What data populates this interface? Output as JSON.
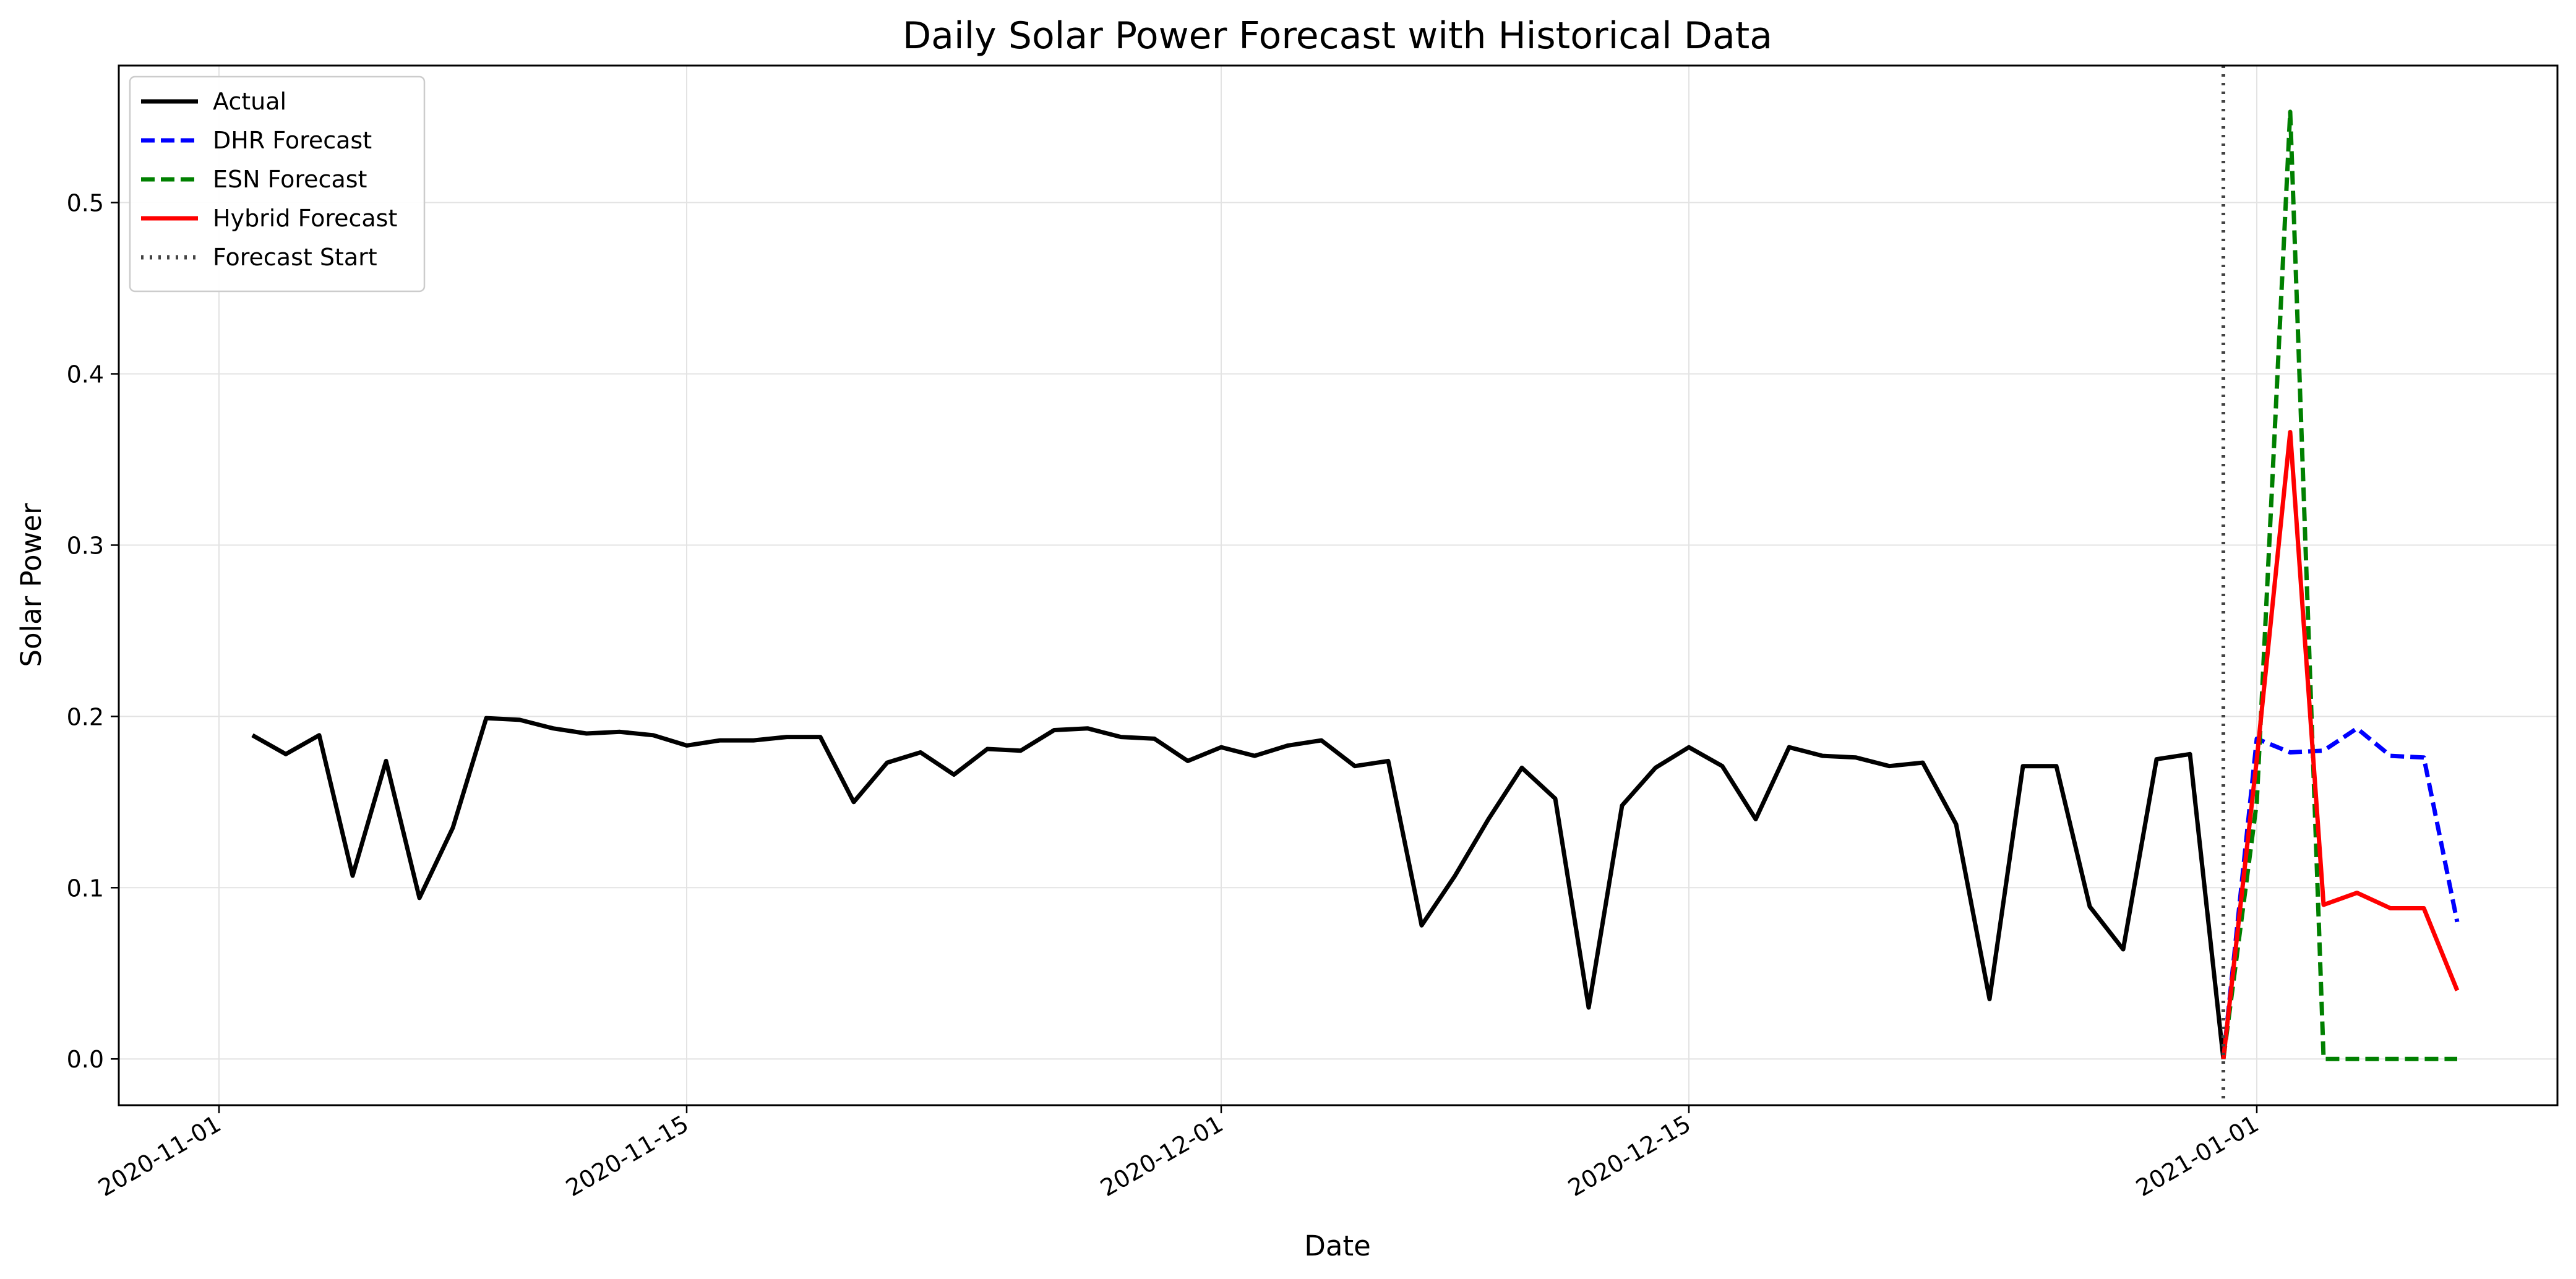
{
  "chart_data": {
    "type": "line",
    "title": "Daily Solar Power Forecast with Historical Data",
    "xlabel": "Date",
    "ylabel": "Solar Power",
    "x_ticks": [
      "2020-11-01",
      "2020-11-15",
      "2020-12-01",
      "2020-12-15",
      "2021-01-01"
    ],
    "y_ticks": [
      "0.0",
      "0.1",
      "0.2",
      "0.3",
      "0.4",
      "0.5"
    ],
    "xlim": [
      "2020-10-29",
      "2021-01-10"
    ],
    "ylim": [
      -0.027,
      0.58
    ],
    "grid": true,
    "legend_position": "top-left",
    "forecast_start": {
      "label": "Forecast Start",
      "date": "2020-12-31",
      "color": "#444444"
    },
    "series": [
      {
        "name": "Actual",
        "color": "#000000",
        "style": "solid",
        "start_date": "2020-11-02",
        "values": [
          0.189,
          0.178,
          0.189,
          0.107,
          0.174,
          0.094,
          0.135,
          0.199,
          0.198,
          0.193,
          0.19,
          0.191,
          0.189,
          0.183,
          0.186,
          0.186,
          0.188,
          0.188,
          0.15,
          0.173,
          0.179,
          0.166,
          0.181,
          0.18,
          0.192,
          0.193,
          0.188,
          0.187,
          0.174,
          0.182,
          0.177,
          0.183,
          0.186,
          0.171,
          0.174,
          0.078,
          0.107,
          0.14,
          0.17,
          0.152,
          0.03,
          0.148,
          0.17,
          0.182,
          0.171,
          0.14,
          0.182,
          0.177,
          0.176,
          0.171,
          0.173,
          0.137,
          0.035,
          0.171,
          0.171,
          0.089,
          0.064,
          0.175,
          0.178,
          0.0
        ]
      },
      {
        "name": "DHR Forecast",
        "color": "#0000ff",
        "style": "dashed",
        "start_date": "2020-12-31",
        "values": [
          0.0,
          0.187,
          0.179,
          0.18,
          0.193,
          0.177,
          0.176,
          0.08
        ]
      },
      {
        "name": "ESN Forecast",
        "color": "#008000",
        "style": "dashed",
        "start_date": "2020-12-31",
        "values": [
          0.0,
          0.15,
          0.553,
          0.0,
          0.0,
          0.0,
          0.0,
          0.0
        ]
      },
      {
        "name": "Hybrid Forecast",
        "color": "#ff0000",
        "style": "solid",
        "start_date": "2020-12-31",
        "values": [
          0.0,
          0.175,
          0.366,
          0.09,
          0.097,
          0.088,
          0.088,
          0.04
        ]
      }
    ]
  }
}
